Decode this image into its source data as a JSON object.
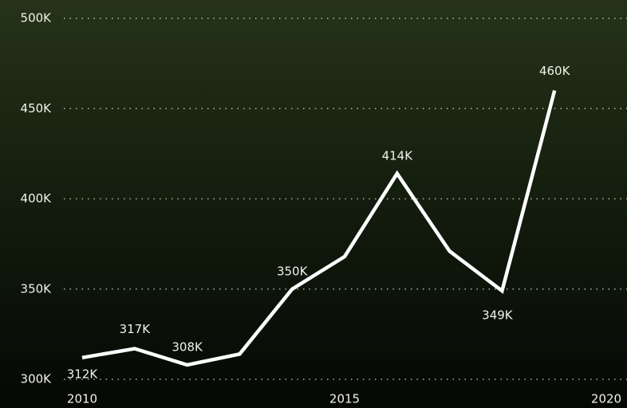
{
  "chart_data": {
    "type": "line",
    "x": [
      2010,
      2011,
      2012,
      2013,
      2014,
      2015,
      2016,
      2017,
      2018,
      2019
    ],
    "series": [
      {
        "color": "#ffffff",
        "values": [
          312000,
          317000,
          308000,
          314000,
          350000,
          368000,
          414000,
          371000,
          349000,
          460000
        ],
        "value_labels": [
          "312K",
          "317K",
          "308K",
          null,
          "350K",
          null,
          "414K",
          null,
          "349K",
          "460K"
        ]
      }
    ],
    "xlim": [
      2010,
      2020
    ],
    "xticks": [
      2010,
      2015,
      2020
    ],
    "ylim": [
      300000,
      500000
    ],
    "yticks": [
      {
        "value": 300000,
        "label": "300K"
      },
      {
        "value": 350000,
        "label": "350K"
      },
      {
        "value": 400000,
        "label": "400K"
      },
      {
        "value": 450000,
        "label": "450K"
      },
      {
        "value": 500000,
        "label": "500K"
      }
    ],
    "grid": true
  }
}
